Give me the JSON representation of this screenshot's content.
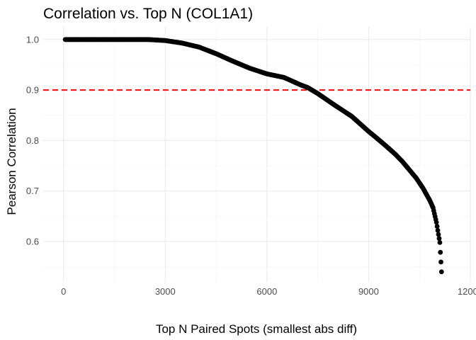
{
  "chart_data": {
    "type": "scatter",
    "title": "Correlation vs. Top N (COL1A1)",
    "xlabel": "Top N Paired Spots (smallest abs diff)",
    "ylabel": "Pearson Correlation",
    "xlim": [
      -600,
      12000
    ],
    "ylim": [
      0.52,
      1.025
    ],
    "xticks": [
      0,
      3000,
      6000,
      9000,
      12000
    ],
    "xtick_labels": [
      "0",
      "3000",
      "6000",
      "9000",
      "12000"
    ],
    "yticks": [
      0.6,
      0.7,
      0.8,
      0.9,
      1.0
    ],
    "ytick_labels": [
      "0.6",
      "0.7",
      "0.8",
      "0.9",
      "1.0"
    ],
    "grid": true,
    "hline": {
      "y": 0.9,
      "color": "#ff0000",
      "style": "dashed"
    },
    "point_color": "#000000",
    "series": [
      {
        "x": [
          50,
          500,
          1000,
          1500,
          2000,
          2500,
          3000,
          3500,
          4000,
          4500,
          5000,
          5500,
          6000,
          6500,
          7000,
          7200,
          7500,
          8000,
          8500,
          9000,
          9200,
          9500,
          9800,
          10000,
          10200,
          10400,
          10600,
          10800,
          10900,
          11000,
          11100,
          11150
        ],
        "y": [
          1.0,
          1.0,
          1.0,
          1.0,
          1.0,
          1.0,
          0.998,
          0.993,
          0.985,
          0.972,
          0.957,
          0.943,
          0.932,
          0.925,
          0.91,
          0.905,
          0.893,
          0.87,
          0.848,
          0.818,
          0.807,
          0.79,
          0.772,
          0.758,
          0.742,
          0.726,
          0.706,
          0.682,
          0.667,
          0.638,
          0.598,
          0.54
        ]
      }
    ]
  }
}
